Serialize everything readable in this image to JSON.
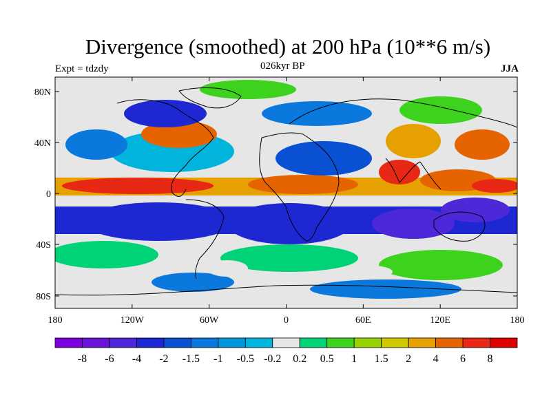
{
  "header": {
    "title": "Divergence (smoothed) at 200 hPa (10**6 m/s)",
    "expt": "Expt = tdzdy",
    "period": "026kyr BP",
    "season": "JJA"
  },
  "map": {
    "lon_ticks": [
      "180",
      "120W",
      "60W",
      "0",
      "60E",
      "120E",
      "180"
    ],
    "lat_ticks": [
      "80N",
      "40N",
      "0",
      "40S",
      "80S"
    ],
    "lon_range": [
      -180,
      180
    ],
    "lat_range": [
      -90,
      90
    ],
    "background_color": "#e6e6e6"
  },
  "colorbar": {
    "labels": [
      "-8",
      "-6",
      "-4",
      "-2",
      "-1.5",
      "-1",
      "-0.5",
      "-0.2",
      "0.2",
      "0.5",
      "1",
      "1.5",
      "2",
      "4",
      "6",
      "8"
    ],
    "colors": [
      "#7b00dc",
      "#6a14d6",
      "#4d28d8",
      "#1e28d2",
      "#0a50d2",
      "#0a78dc",
      "#0096dc",
      "#00b4dc",
      "#e6e6e6",
      "#00d278",
      "#3cd21e",
      "#96d200",
      "#d2c800",
      "#e6a000",
      "#e66400",
      "#e62814",
      "#dc0000"
    ]
  }
}
